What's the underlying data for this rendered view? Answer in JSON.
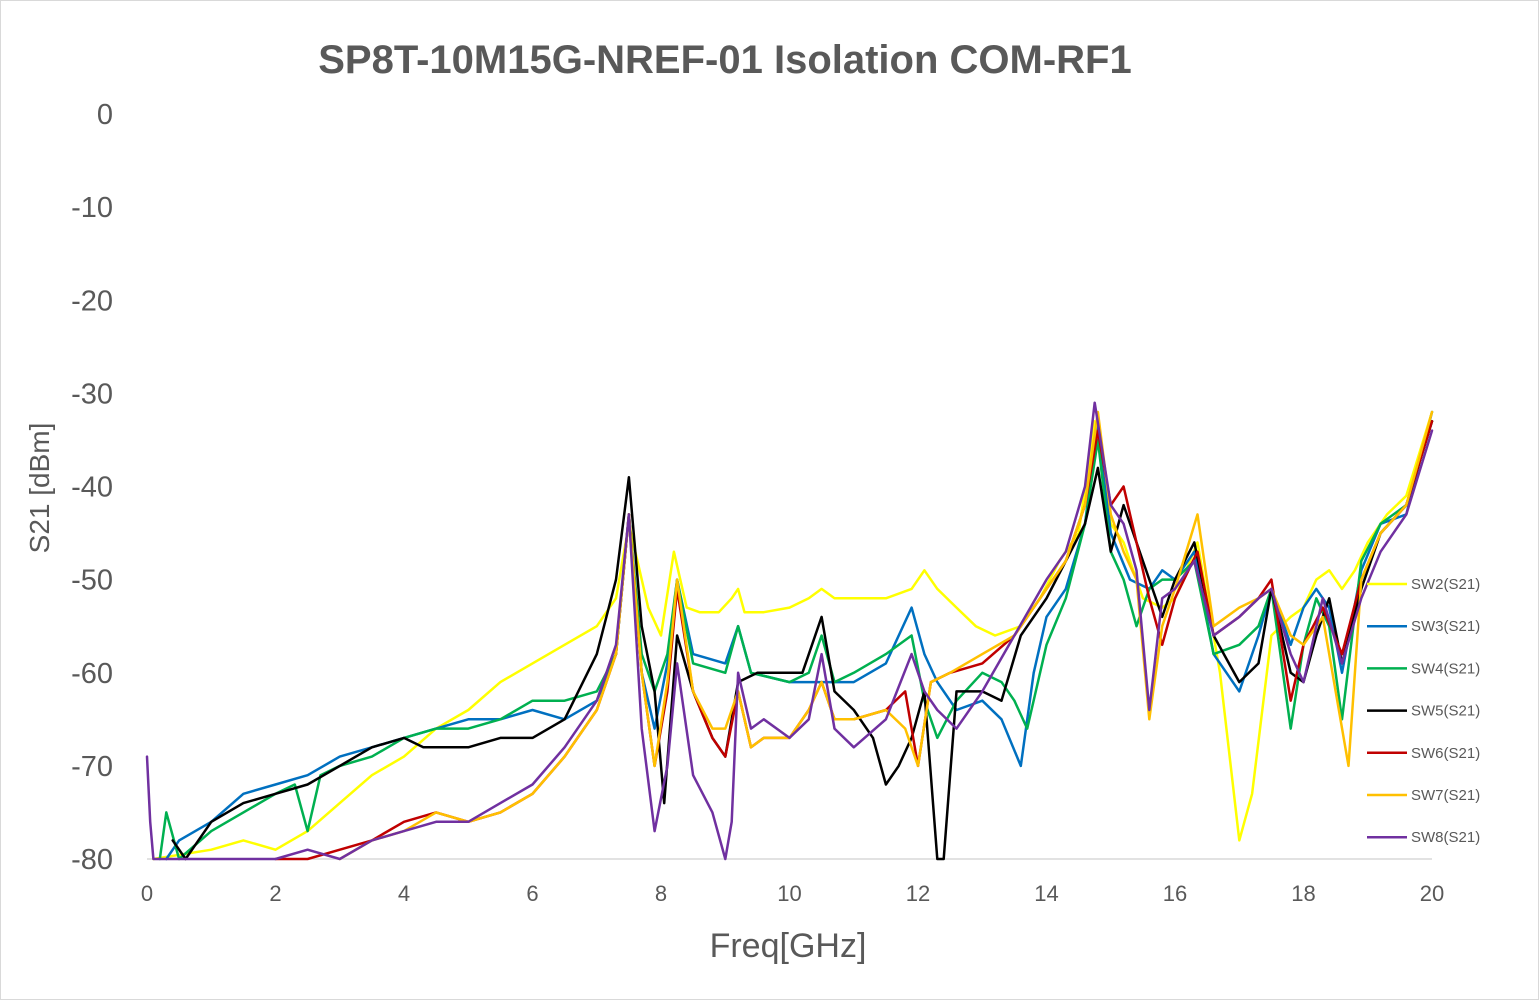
{
  "chart_data": {
    "type": "line",
    "title": "SP8T-10M15G-NREF-01 Isolation COM-RF1",
    "xlabel": "Freq[GHz]",
    "ylabel": "S21 [dBm]",
    "xlim": [
      0,
      20
    ],
    "ylim": [
      -80,
      0
    ],
    "x_ticks": [
      "0",
      "2",
      "4",
      "6",
      "8",
      "10",
      "12",
      "14",
      "16",
      "18",
      "20"
    ],
    "y_ticks": [
      "0",
      "-10",
      "-20",
      "-30",
      "-40",
      "-50",
      "-60",
      "-70",
      "-80"
    ],
    "grid": false,
    "legend_position": "right",
    "series": [
      {
        "name": "SW2(S21)",
        "color": "#ffff00",
        "x": [
          0.1,
          1.0,
          1.5,
          2.0,
          2.5,
          3.0,
          3.5,
          4.0,
          4.5,
          5.0,
          5.5,
          6.0,
          6.5,
          7.0,
          7.3,
          7.5,
          7.8,
          8.0,
          8.2,
          8.4,
          8.6,
          8.9,
          9.1,
          9.2,
          9.3,
          9.6,
          10.0,
          10.3,
          10.5,
          10.7,
          11.0,
          11.5,
          11.9,
          12.1,
          12.3,
          12.6,
          12.9,
          13.2,
          13.6,
          13.9,
          14.2,
          14.5,
          14.75,
          15.0,
          15.2,
          15.5,
          15.8,
          16.0,
          16.35,
          16.7,
          17.0,
          17.2,
          17.5,
          17.8,
          18.0,
          18.2,
          18.4,
          18.6,
          18.8,
          19.0,
          19.3,
          19.6,
          20.0
        ],
        "y": [
          -80,
          -79,
          -78,
          -79,
          -77,
          -74,
          -71,
          -69,
          -66,
          -64,
          -61,
          -59,
          -57,
          -55,
          -52,
          -44,
          -53,
          -56,
          -47,
          -53,
          -53.5,
          -53.5,
          -52,
          -51,
          -53.5,
          -53.5,
          -53,
          -52,
          -51,
          -52,
          -52,
          -52,
          -51,
          -49,
          -51,
          -53,
          -55,
          -56,
          -55,
          -52,
          -48,
          -45,
          -33,
          -44,
          -46,
          -52,
          -53,
          -52,
          -46,
          -60,
          -78,
          -73,
          -56,
          -54,
          -53,
          -50,
          -49,
          -51,
          -49,
          -46,
          -43,
          -41,
          -32
        ]
      },
      {
        "name": "SW3(S21)",
        "color": "#0070c0",
        "x": [
          0.3,
          0.5,
          1.0,
          1.5,
          2.0,
          2.5,
          3.0,
          3.5,
          4.0,
          4.5,
          5.0,
          5.5,
          6.0,
          6.5,
          7.0,
          7.3,
          7.5,
          7.7,
          7.9,
          8.1,
          8.25,
          8.5,
          9.0,
          9.2,
          9.4,
          10.0,
          10.5,
          11.0,
          11.5,
          11.9,
          12.1,
          12.3,
          12.6,
          13.0,
          13.3,
          13.6,
          13.8,
          14.0,
          14.3,
          14.6,
          14.8,
          15.0,
          15.3,
          15.6,
          15.8,
          16.0,
          16.3,
          16.6,
          17.0,
          17.3,
          17.5,
          17.8,
          18.0,
          18.2,
          18.4,
          18.6,
          18.9,
          19.2,
          19.6,
          20.0
        ],
        "y": [
          -80,
          -78,
          -76,
          -73,
          -72,
          -71,
          -69,
          -68,
          -67,
          -66,
          -65,
          -65,
          -64,
          -65,
          -63,
          -58,
          -43,
          -60,
          -66,
          -59,
          -50,
          -58,
          -59,
          -55,
          -60,
          -61,
          -61,
          -61,
          -59,
          -53,
          -58,
          -61,
          -64,
          -63,
          -65,
          -70,
          -60,
          -54,
          -51,
          -44,
          -33,
          -45,
          -50,
          -51,
          -49,
          -50,
          -47,
          -58,
          -62,
          -56,
          -51,
          -57,
          -53,
          -51,
          -53,
          -60,
          -49,
          -44,
          -43,
          -32
        ]
      },
      {
        "name": "SW4(S21)",
        "color": "#00b050",
        "x": [
          0.2,
          0.3,
          0.5,
          1.0,
          1.5,
          2.0,
          2.3,
          2.5,
          2.7,
          3.0,
          3.5,
          4.0,
          4.5,
          5.0,
          5.5,
          6.0,
          6.5,
          7.0,
          7.3,
          7.5,
          7.7,
          7.9,
          8.1,
          8.25,
          8.5,
          9.0,
          9.2,
          9.4,
          10.0,
          10.3,
          10.5,
          10.7,
          11.0,
          11.5,
          11.9,
          12.1,
          12.3,
          12.6,
          13.0,
          13.3,
          13.5,
          13.7,
          14.0,
          14.3,
          14.6,
          14.8,
          15.0,
          15.2,
          15.4,
          15.6,
          15.8,
          16.0,
          16.3,
          16.6,
          17.0,
          17.3,
          17.5,
          17.8,
          18.0,
          18.2,
          18.4,
          18.6,
          18.9,
          19.2,
          19.6,
          20.0
        ],
        "y": [
          -80,
          -75,
          -80,
          -77,
          -75,
          -73,
          -72,
          -77,
          -71,
          -70,
          -69,
          -67,
          -66,
          -66,
          -65,
          -63,
          -63,
          -62,
          -58,
          -43,
          -58,
          -62,
          -58,
          -50,
          -59,
          -60,
          -55,
          -60,
          -61,
          -60,
          -56,
          -61,
          -60,
          -58,
          -56,
          -63,
          -67,
          -63,
          -60,
          -61,
          -63,
          -66,
          -57,
          -52,
          -44,
          -35,
          -47,
          -50,
          -55,
          -51,
          -50,
          -50,
          -48,
          -58,
          -57,
          -55,
          -51,
          -66,
          -57,
          -52,
          -55,
          -65,
          -48,
          -44,
          -42,
          -33
        ]
      },
      {
        "name": "SW5(S21)",
        "color": "#000000",
        "x": [
          0.4,
          0.6,
          0.8,
          1.0,
          1.5,
          2.0,
          2.5,
          3.0,
          3.5,
          4.0,
          4.3,
          4.6,
          5.0,
          5.5,
          6.0,
          6.5,
          7.0,
          7.3,
          7.5,
          7.7,
          7.9,
          8.05,
          8.25,
          8.5,
          8.8,
          9.0,
          9.2,
          9.5,
          9.8,
          10.2,
          10.5,
          10.7,
          11.0,
          11.3,
          11.5,
          11.7,
          11.9,
          12.1,
          12.3,
          12.4,
          12.6,
          13.0,
          13.3,
          13.6,
          14.0,
          14.3,
          14.6,
          14.8,
          15.0,
          15.2,
          15.5,
          15.8,
          16.0,
          16.3,
          16.6,
          17.0,
          17.3,
          17.5,
          17.8,
          18.0,
          18.2,
          18.4,
          18.6,
          18.9,
          19.2,
          19.6,
          20.0
        ],
        "y": [
          -78,
          -80,
          -78,
          -76,
          -74,
          -73,
          -72,
          -70,
          -68,
          -67,
          -68,
          -68,
          -68,
          -67,
          -67,
          -65,
          -58,
          -50,
          -39,
          -55,
          -62,
          -74,
          -56,
          -62,
          -67,
          -69,
          -61,
          -60,
          -60,
          -60,
          -54,
          -62,
          -64,
          -67,
          -72,
          -70,
          -67,
          -62,
          -80,
          -80,
          -62,
          -62,
          -63,
          -56,
          -52,
          -48,
          -44,
          -38,
          -47,
          -42,
          -48,
          -54,
          -50,
          -46,
          -56,
          -61,
          -59,
          -51,
          -60,
          -61,
          -56,
          -52,
          -59,
          -51,
          -45,
          -42,
          -33
        ]
      },
      {
        "name": "SW6(S21)",
        "color": "#c00000",
        "x": [
          2.0,
          2.5,
          3.0,
          3.5,
          4.0,
          4.5,
          5.0,
          5.5,
          6.0,
          6.5,
          7.0,
          7.3,
          7.5,
          7.7,
          7.9,
          8.1,
          8.25,
          8.5,
          8.8,
          9.0,
          9.2,
          9.4,
          9.6,
          10.0,
          10.3,
          10.5,
          10.7,
          11.0,
          11.5,
          11.8,
          12.0,
          12.2,
          12.5,
          13.0,
          13.5,
          14.0,
          14.3,
          14.6,
          14.8,
          15.0,
          15.2,
          15.4,
          15.6,
          15.8,
          16.0,
          16.35,
          16.6,
          17.0,
          17.3,
          17.5,
          17.8,
          18.0,
          18.3,
          18.6,
          18.9,
          19.2,
          19.6,
          20.0
        ],
        "y": [
          -80,
          -80,
          -79,
          -78,
          -76,
          -75,
          -76,
          -75,
          -73,
          -69,
          -64,
          -58,
          -43,
          -60,
          -70,
          -62,
          -51,
          -62,
          -67,
          -69,
          -62,
          -68,
          -67,
          -67,
          -64,
          -61,
          -65,
          -65,
          -64,
          -62,
          -70,
          -61,
          -60,
          -59,
          -56,
          -51,
          -48,
          -42,
          -34,
          -42,
          -40,
          -46,
          -52,
          -57,
          -52,
          -47,
          -56,
          -54,
          -52,
          -50,
          -63,
          -57,
          -53,
          -58,
          -50,
          -45,
          -42,
          -33
        ]
      },
      {
        "name": "SW7(S21)",
        "color": "#ffc000",
        "x": [
          3.0,
          3.5,
          4.0,
          4.5,
          5.0,
          5.5,
          6.0,
          6.5,
          7.0,
          7.3,
          7.5,
          7.7,
          7.9,
          8.1,
          8.25,
          8.5,
          8.8,
          9.0,
          9.2,
          9.4,
          9.6,
          10.0,
          10.3,
          10.5,
          10.7,
          11.0,
          11.5,
          11.8,
          12.0,
          12.2,
          12.5,
          13.0,
          13.5,
          14.0,
          14.3,
          14.6,
          14.8,
          15.0,
          15.2,
          15.4,
          15.6,
          15.8,
          16.0,
          16.35,
          16.6,
          17.0,
          17.3,
          17.5,
          17.8,
          18.0,
          18.3,
          18.7,
          18.9,
          19.2,
          19.6,
          20.0
        ],
        "y": [
          -80,
          -78,
          -77,
          -75,
          -76,
          -75,
          -73,
          -69,
          -64,
          -58,
          -43,
          -60,
          -70,
          -61,
          -50,
          -62,
          -66,
          -66,
          -62,
          -68,
          -67,
          -67,
          -64,
          -61,
          -65,
          -65,
          -64,
          -66,
          -70,
          -61,
          -60,
          -58,
          -56,
          -51,
          -48,
          -42,
          -32,
          -43,
          -47,
          -50,
          -65,
          -55,
          -51,
          -43,
          -55,
          -53,
          -52,
          -51,
          -56,
          -57,
          -54,
          -70,
          -50,
          -45,
          -42,
          -32
        ]
      },
      {
        "name": "SW8(S21)",
        "color": "#7030a0",
        "x": [
          0.0,
          0.05,
          0.1,
          1.2,
          2.0,
          2.5,
          3.0,
          3.5,
          4.0,
          4.5,
          5.0,
          5.5,
          6.0,
          6.5,
          7.0,
          7.3,
          7.5,
          7.7,
          7.9,
          8.1,
          8.25,
          8.5,
          8.8,
          9.0,
          9.1,
          9.2,
          9.4,
          9.6,
          10.0,
          10.3,
          10.5,
          10.7,
          11.0,
          11.5,
          11.9,
          12.1,
          12.3,
          12.6,
          13.0,
          13.5,
          14.0,
          14.3,
          14.6,
          14.75,
          15.0,
          15.2,
          15.4,
          15.6,
          15.8,
          16.0,
          16.3,
          16.6,
          17.0,
          17.3,
          17.5,
          17.8,
          18.0,
          18.3,
          18.6,
          18.9,
          19.2,
          19.6,
          20.0
        ],
        "y": [
          -69,
          -76,
          -80,
          -80,
          -80,
          -79,
          -80,
          -78,
          -77,
          -76,
          -76,
          -74,
          -72,
          -68,
          -63,
          -57,
          -43,
          -66,
          -77,
          -70,
          -59,
          -71,
          -75,
          -80,
          -76,
          -60,
          -66,
          -65,
          -67,
          -65,
          -58,
          -66,
          -68,
          -65,
          -58,
          -62,
          -64,
          -66,
          -62,
          -56,
          -50,
          -47,
          -40,
          -31,
          -42,
          -44,
          -49,
          -64,
          -52,
          -51,
          -48,
          -56,
          -54,
          -52,
          -51,
          -58,
          -61,
          -52,
          -59,
          -52,
          -47,
          -43,
          -34
        ]
      }
    ]
  }
}
